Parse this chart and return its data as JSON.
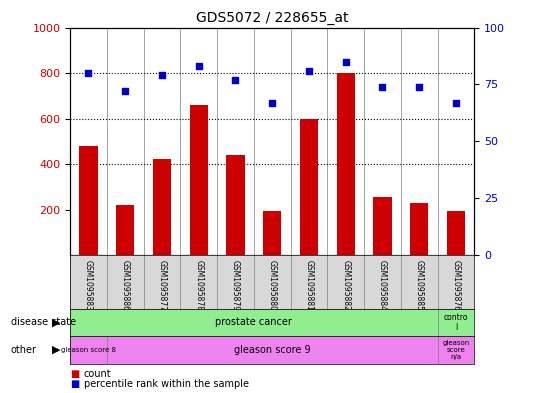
{
  "title": "GDS5072 / 228655_at",
  "samples": [
    "GSM1095883",
    "GSM1095886",
    "GSM1095877",
    "GSM1095878",
    "GSM1095879",
    "GSM1095880",
    "GSM1095881",
    "GSM1095882",
    "GSM1095884",
    "GSM1095885",
    "GSM1095876"
  ],
  "counts": [
    480,
    220,
    425,
    660,
    440,
    195,
    600,
    800,
    255,
    230,
    195
  ],
  "percentiles": [
    80,
    72,
    79,
    83,
    77,
    67,
    81,
    85,
    74,
    74,
    67
  ],
  "ylim_left": [
    0,
    1000
  ],
  "ylim_right": [
    0,
    100
  ],
  "yticks_left": [
    200,
    400,
    600,
    800,
    1000
  ],
  "yticks_right": [
    0,
    25,
    50,
    75,
    100
  ],
  "bar_color": "#cc0000",
  "dot_color": "#0000cc",
  "disease_state_label": "disease state",
  "other_label": "other",
  "legend_count": "count",
  "legend_percentile": "percentile rank within the sample",
  "bg_color": "#d8d8d8"
}
